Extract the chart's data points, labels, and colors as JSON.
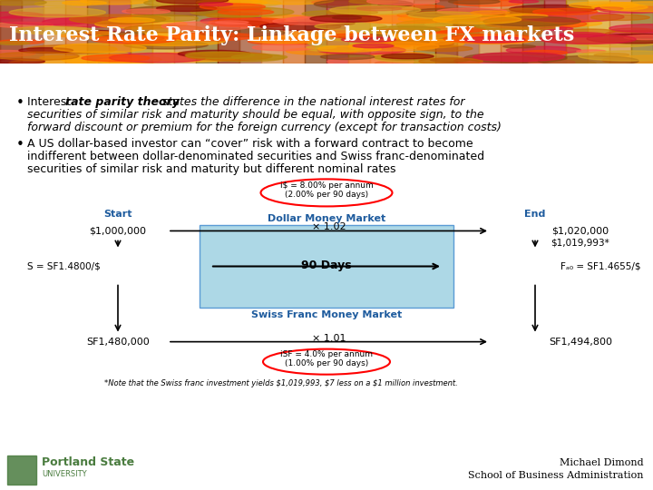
{
  "title": "Interest Rate Parity: Linkage between FX markets",
  "title_color": "#ffffff",
  "bullet1_line1_plain": "Interest ",
  "bullet1_line1_bolditalic": "rate parity theory",
  "bullet1_line1_italic": " states the difference in the national interest rates for",
  "bullet1_line2": "securities of similar risk and maturity should be equal, with opposite sign, to the",
  "bullet1_line3": "forward discount or premium for the foreign currency (except for transaction costs)",
  "bullet2_line1": "A US dollar-based investor can “cover” risk with a forward contract to become",
  "bullet2_line2": "indifferent between dollar-denominated securities and Swiss franc-denominated",
  "bullet2_line3": "securities of similar risk and maturity but different nominal rates",
  "box_color": "#add8e6",
  "box_edge_color": "#5b9bd5",
  "box_label_top": "Dollar Money Market",
  "box_label_bottom": "Swiss Franc Money Market",
  "box_center_label": "90 Days",
  "start_label": "Start",
  "end_label": "End",
  "dollar_start": "$1,000,000",
  "dollar_mult": "× 1.02",
  "dollar_end": "$1,020,000",
  "dollar_end2": "$1,019,993*",
  "spot_rate": "S = SF1.4800/$",
  "forward_rate": "Fₐ₀ = SF1.4655/$",
  "sf_start": "SF1,480,000",
  "sf_mult": "× 1.01",
  "sf_end": "SF1,494,800",
  "us_rate_label": "i$ = 8.00% per annum\n(2.00% per 90 days)",
  "sf_rate_label": "iSF = 4.0% per annum\n(1.00% per 90 days)",
  "footnote": "*Note that the Swiss franc investment yields $1,019,993, $7 less on a $1 million investment.",
  "author1": "Michael Dimond",
  "author2": "School of Business Administration",
  "label_color_blue": "#1F5C9E",
  "bg_white": "#ffffff",
  "text_black": "#000000",
  "autumn_colors": [
    "#8B2500",
    "#A0522D",
    "#CD853F",
    "#D2691E",
    "#8B4513",
    "#A52A2A",
    "#B8860B",
    "#DAA520",
    "#CD853F",
    "#8B6914"
  ],
  "leaf_colors": [
    "#FF4500",
    "#FF6347",
    "#FF8C00",
    "#FFA500",
    "#DC143C",
    "#8B0000",
    "#B8860B",
    "#DAA520",
    "#CD6600",
    "#8B4513"
  ],
  "psu_green": "#4a7c3f"
}
